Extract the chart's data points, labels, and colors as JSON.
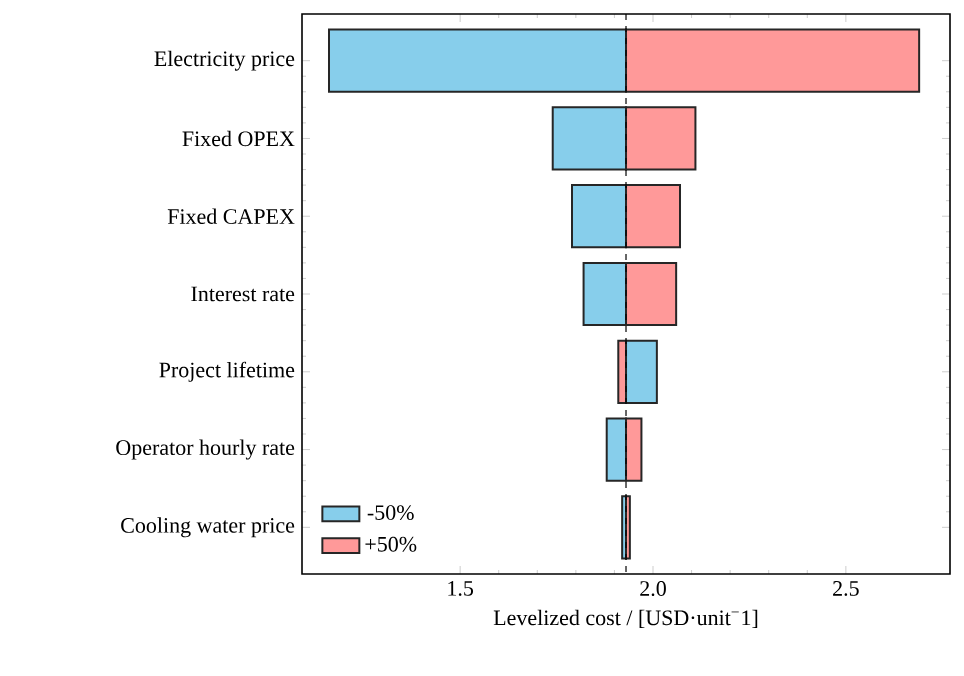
{
  "chart_data": {
    "type": "bar",
    "orientation": "horizontal",
    "categories": [
      "Electricity price",
      "Fixed OPEX",
      "Fixed CAPEX",
      "Interest rate",
      "Project lifetime",
      "Operator hourly rate",
      "Cooling water price"
    ],
    "series": [
      {
        "name": "-50%",
        "color": "#87ceeb",
        "base": [
          1.93,
          1.93,
          1.93,
          1.93,
          1.93,
          1.93,
          1.93
        ],
        "values": [
          -0.77,
          -0.19,
          -0.14,
          -0.11,
          0.08,
          -0.05,
          -0.01
        ]
      },
      {
        "name": "+50%",
        "color": "#ff9999",
        "base": [
          1.93,
          1.93,
          1.93,
          1.93,
          1.93,
          1.93,
          1.93
        ],
        "values": [
          0.76,
          0.18,
          0.14,
          0.13,
          -0.02,
          0.04,
          0.01
        ]
      }
    ],
    "xlim": [
      1.09,
      2.77
    ],
    "xticks": [
      {
        "value": 1.5,
        "label": "1.5"
      },
      {
        "value": 2.0,
        "label": "2.0"
      },
      {
        "value": 2.5,
        "label": "2.5"
      }
    ],
    "xlabel": "Levelized cost / [USD·unit$^{−}$1]",
    "ref_lines": [
      {
        "axis": "x",
        "value": 1.93,
        "line_style": "dashed"
      }
    ],
    "legend": "bottom left"
  }
}
